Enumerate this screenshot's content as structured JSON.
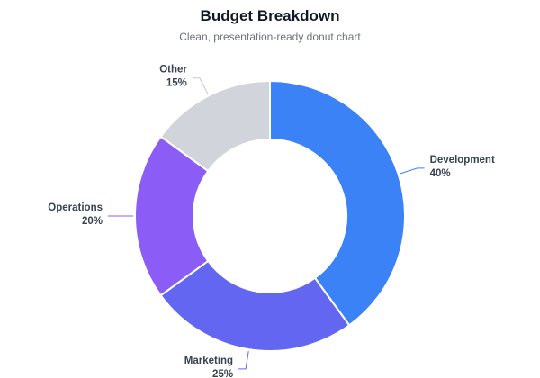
{
  "chart_data": {
    "type": "pie",
    "donut": true,
    "title": "Budget Breakdown",
    "subtitle": "Clean, presentation-ready donut chart",
    "slices": [
      {
        "label": "Development",
        "value": 40,
        "value_label": "40%",
        "color": "#3b82f6"
      },
      {
        "label": "Marketing",
        "value": 25,
        "value_label": "25%",
        "color": "#6366f1"
      },
      {
        "label": "Operations",
        "value": 20,
        "value_label": "20%",
        "color": "#8b5cf6"
      },
      {
        "label": "Other",
        "value": 15,
        "value_label": "15%",
        "color": "#d1d5db"
      }
    ]
  }
}
